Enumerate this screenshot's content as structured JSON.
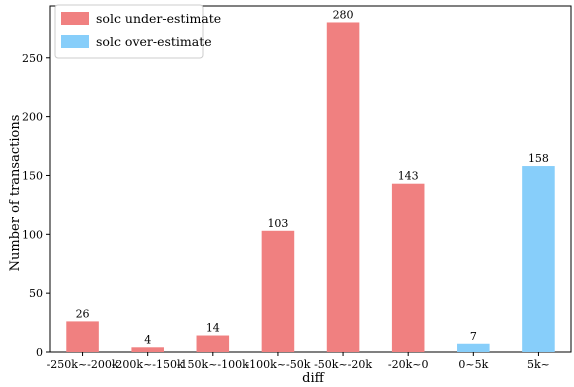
{
  "chart_data": {
    "type": "bar",
    "xlabel": "diff",
    "ylabel": "Number of transactions",
    "ylim": [
      0,
      294
    ],
    "yticks": [
      0,
      50,
      100,
      150,
      200,
      250
    ],
    "grid": false,
    "legend_position": "top-left",
    "categories": [
      "-250k~-200k",
      "-200k~-150k",
      "-150k~-100k",
      "-100k~-50k",
      "-50k~-20k",
      "-20k~0",
      "0~5k",
      "5k~"
    ],
    "values": [
      26,
      4,
      14,
      103,
      280,
      143,
      7,
      158
    ],
    "bar_series": [
      0,
      0,
      0,
      0,
      0,
      0,
      1,
      1
    ],
    "series": [
      {
        "name": "solc under-estimate",
        "color": "#f08080"
      },
      {
        "name": "solc over-estimate",
        "color": "#87cefa"
      }
    ]
  }
}
